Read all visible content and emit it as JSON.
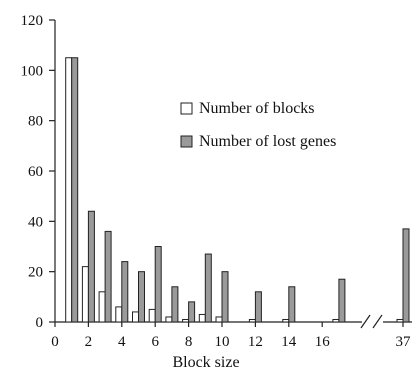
{
  "chart_data": {
    "type": "bar",
    "xlabel": "Block size",
    "ylabel": "",
    "ylim": [
      0,
      120
    ],
    "yticks": [
      0,
      20,
      40,
      60,
      80,
      100,
      120
    ],
    "grid": false,
    "legend_position": "top-right",
    "categories": [
      "1",
      "2",
      "3",
      "4",
      "5",
      "6",
      "7",
      "8",
      "9",
      "10",
      "11",
      "12",
      "13",
      "14",
      "15",
      "16",
      "17",
      "37"
    ],
    "xtick_labels": [
      {
        "at": "0",
        "label": "0"
      },
      {
        "at": "2",
        "label": "2"
      },
      {
        "at": "4",
        "label": "4"
      },
      {
        "at": "6",
        "label": "6"
      },
      {
        "at": "8",
        "label": "8"
      },
      {
        "at": "10",
        "label": "10"
      },
      {
        "at": "12",
        "label": "12"
      },
      {
        "at": "14",
        "label": "14"
      },
      {
        "at": "16",
        "label": "16"
      },
      {
        "at": "37",
        "label": "37"
      }
    ],
    "axis_break_between": [
      "17",
      "37"
    ],
    "series": [
      {
        "name": "Number of blocks",
        "color": "#ffffff",
        "values": [
          105,
          22,
          12,
          6,
          4,
          5,
          2,
          1,
          3,
          2,
          0,
          1,
          0,
          1,
          0,
          0,
          1,
          1
        ]
      },
      {
        "name": "Number of lost genes",
        "color": "#9a9a9a",
        "values": [
          105,
          44,
          36,
          24,
          20,
          30,
          14,
          8,
          27,
          20,
          0,
          12,
          0,
          14,
          0,
          0,
          17,
          37
        ]
      }
    ]
  }
}
